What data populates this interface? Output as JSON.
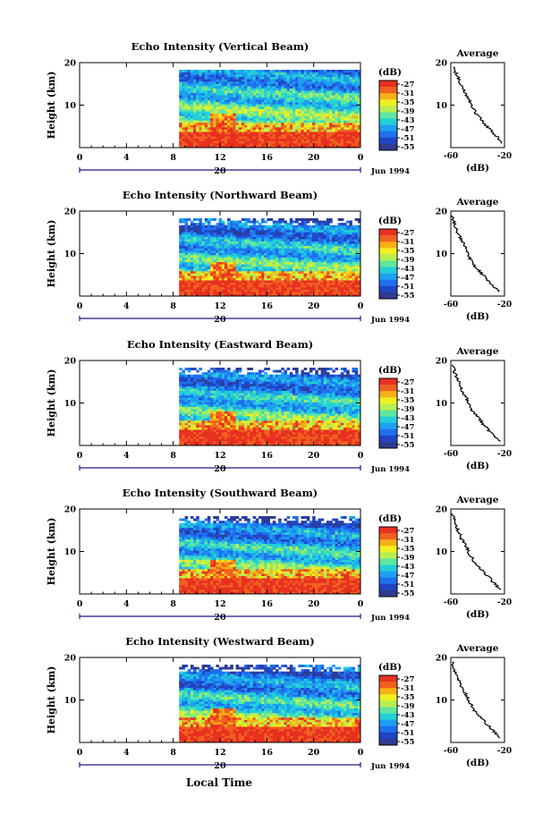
{
  "figure": {
    "date_label": "Jun 1994",
    "shared_xlabel": "Local Time",
    "colorbar_unit": "(dB)",
    "colorbar_ticks": [
      "-27",
      "-31",
      "-35",
      "-39",
      "-43",
      "-47",
      "-51",
      "-55"
    ],
    "colorscale": [
      "#303b8e",
      "#2044c4",
      "#1f6ef0",
      "#1ea0f0",
      "#22d0d8",
      "#60e6a0",
      "#b8ee50",
      "#f0f020",
      "#f7b018",
      "#f06020",
      "#e83020"
    ],
    "average_title": "Average",
    "average_xlabel": "(dB)",
    "average_xticks": [
      "-60",
      "-20"
    ]
  },
  "chart_data": [
    {
      "type": "heatmap",
      "title": "Echo Intensity (Vertical Beam)",
      "ylabel": "Height (km)",
      "xlabel": "",
      "x_ticks": [
        "0",
        "4",
        "8",
        "12",
        "16",
        "20",
        "0"
      ],
      "x_day_label": "20",
      "y_ticks": [
        "20",
        "10"
      ],
      "xlim": [
        0,
        24
      ],
      "ylim": [
        0,
        20
      ],
      "data_start_hour": 8.5,
      "profile": {
        "title": "Average",
        "xlabel": "(dB)",
        "xlim": [
          -60,
          -20
        ],
        "x_ticks": [
          -60,
          -20
        ],
        "heights_km": [
          1,
          2,
          3,
          4,
          5,
          6,
          7,
          8,
          9,
          10,
          11,
          12,
          13,
          14,
          15,
          16,
          17,
          18,
          19
        ],
        "values_db": [
          -22,
          -24,
          -27,
          -30,
          -33,
          -36,
          -38,
          -41,
          -43,
          -45,
          -46,
          -48,
          -49,
          -51,
          -53,
          -54,
          -55,
          -57,
          -58
        ]
      }
    },
    {
      "type": "heatmap",
      "title": "Echo Intensity (Northward Beam)",
      "ylabel": "Height (km)",
      "xlabel": "",
      "x_ticks": [
        "0",
        "4",
        "8",
        "12",
        "16",
        "20",
        "0"
      ],
      "x_day_label": "20",
      "y_ticks": [
        "20",
        "10"
      ],
      "xlim": [
        0,
        24
      ],
      "ylim": [
        0,
        20
      ],
      "data_start_hour": 8.5,
      "profile": {
        "title": "Average",
        "xlabel": "(dB)",
        "xlim": [
          -60,
          -20
        ],
        "x_ticks": [
          -60,
          -20
        ],
        "heights_km": [
          1,
          2,
          3,
          4,
          5,
          6,
          7,
          8,
          9,
          10,
          11,
          12,
          13,
          14,
          15,
          16,
          17,
          18,
          19
        ],
        "values_db": [
          -24,
          -27,
          -30,
          -33,
          -36,
          -39,
          -42,
          -44,
          -46,
          -47,
          -49,
          -50,
          -52,
          -53,
          -55,
          -56,
          -57,
          -58,
          -59
        ]
      }
    },
    {
      "type": "heatmap",
      "title": "Echo Intensity (Eastward Beam)",
      "ylabel": "Height (km)",
      "xlabel": "",
      "x_ticks": [
        "0",
        "4",
        "8",
        "12",
        "16",
        "20",
        "0"
      ],
      "x_day_label": "20",
      "y_ticks": [
        "20",
        "10"
      ],
      "xlim": [
        0,
        24
      ],
      "ylim": [
        0,
        20
      ],
      "data_start_hour": 8.5,
      "profile": {
        "title": "Average",
        "xlabel": "(dB)",
        "xlim": [
          -60,
          -20
        ],
        "x_ticks": [
          -60,
          -20
        ],
        "heights_km": [
          1,
          2,
          3,
          4,
          5,
          6,
          7,
          8,
          9,
          10,
          11,
          12,
          13,
          14,
          15,
          16,
          17,
          18,
          19
        ],
        "values_db": [
          -24,
          -27,
          -30,
          -33,
          -36,
          -38,
          -41,
          -44,
          -46,
          -47,
          -48,
          -50,
          -52,
          -53,
          -54,
          -56,
          -57,
          -58,
          -59
        ]
      }
    },
    {
      "type": "heatmap",
      "title": "Echo Intensity (Southward Beam)",
      "ylabel": "Height (km)",
      "xlabel": "",
      "x_ticks": [
        "0",
        "4",
        "8",
        "12",
        "16",
        "20",
        "0"
      ],
      "x_day_label": "20",
      "y_ticks": [
        "20",
        "10"
      ],
      "xlim": [
        0,
        24
      ],
      "ylim": [
        0,
        20
      ],
      "data_start_hour": 8.5,
      "profile": {
        "title": "Average",
        "xlabel": "(dB)",
        "xlim": [
          -60,
          -20
        ],
        "x_ticks": [
          -60,
          -20
        ],
        "heights_km": [
          1,
          2,
          3,
          4,
          5,
          6,
          7,
          8,
          9,
          10,
          11,
          12,
          13,
          14,
          15,
          16,
          17,
          18,
          19
        ],
        "values_db": [
          -23,
          -26,
          -29,
          -32,
          -35,
          -38,
          -41,
          -43,
          -45,
          -47,
          -48,
          -50,
          -52,
          -53,
          -55,
          -56,
          -57,
          -58,
          -59
        ]
      }
    },
    {
      "type": "heatmap",
      "title": "Echo Intensity (Westward Beam)",
      "ylabel": "Height (km)",
      "xlabel": "Local Time",
      "x_ticks": [
        "0",
        "4",
        "8",
        "12",
        "16",
        "20",
        "0"
      ],
      "x_day_label": "20",
      "y_ticks": [
        "20",
        "10"
      ],
      "xlim": [
        0,
        24
      ],
      "ylim": [
        0,
        20
      ],
      "data_start_hour": 8.5,
      "profile": {
        "title": "Average",
        "xlabel": "(dB)",
        "xlim": [
          -60,
          -20
        ],
        "x_ticks": [
          -60,
          -20
        ],
        "heights_km": [
          1,
          2,
          3,
          4,
          5,
          6,
          7,
          8,
          9,
          10,
          11,
          12,
          13,
          14,
          15,
          16,
          17,
          18,
          19
        ],
        "values_db": [
          -23,
          -26,
          -29,
          -32,
          -35,
          -38,
          -41,
          -44,
          -45,
          -47,
          -48,
          -50,
          -52,
          -53,
          -55,
          -56,
          -57,
          -58,
          -59
        ]
      }
    }
  ]
}
